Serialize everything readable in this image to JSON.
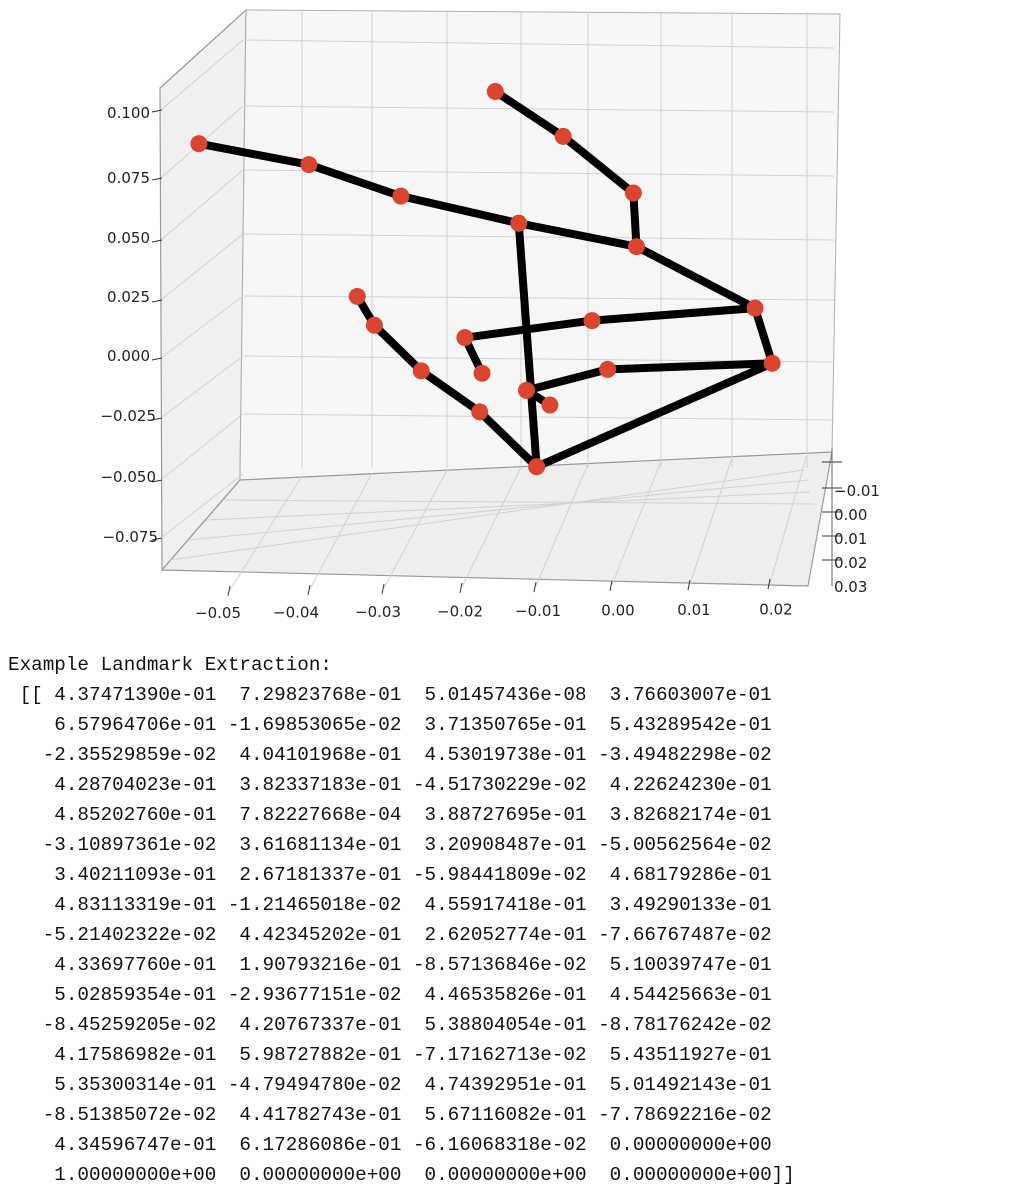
{
  "chart_data": {
    "type": "3d-scatter-line",
    "title": "",
    "xlabel": "",
    "ylabel": "",
    "zlabel": "",
    "x_ticks": [
      "−0.05",
      "−0.04",
      "−0.03",
      "−0.02",
      "−0.01",
      "0.00",
      "0.01",
      "0.02"
    ],
    "y_ticks": [
      "−0.01",
      "0.00",
      "0.01",
      "0.02",
      "0.03"
    ],
    "z_ticks": [
      "0.100",
      "0.075",
      "0.050",
      "0.025",
      "0.000",
      "−0.025",
      "−0.050",
      "−0.075"
    ],
    "point_color": "#d9452f",
    "line_color": "#000000",
    "grid": true,
    "landmarks_image_approx": [
      {
        "id": 0,
        "x": -0.0112,
        "z": -0.0458
      },
      {
        "id": 1,
        "x": -0.0185,
        "z": -0.0233
      },
      {
        "id": 2,
        "x": -0.026,
        "z": -0.0065
      },
      {
        "id": 3,
        "x": -0.032,
        "z": 0.0122
      },
      {
        "id": 4,
        "x": -0.0342,
        "z": 0.024
      },
      {
        "id": 5,
        "x": -0.0135,
        "z": 0.054
      },
      {
        "id": 6,
        "x": -0.0286,
        "z": 0.0651
      },
      {
        "id": 7,
        "x": -0.0404,
        "z": 0.078
      },
      {
        "id": 8,
        "x": -0.0545,
        "z": 0.0866
      },
      {
        "id": 9,
        "x": 0.0016,
        "z": 0.0444
      },
      {
        "id": 10,
        "x": 0.0012,
        "z": 0.0664
      },
      {
        "id": 11,
        "x": -0.0078,
        "z": 0.0896
      },
      {
        "id": 12,
        "x": -0.0165,
        "z": 0.108
      },
      {
        "id": 13,
        "x": 0.0168,
        "z": 0.0192
      },
      {
        "id": 14,
        "x": -0.0041,
        "z": 0.0141
      },
      {
        "id": 15,
        "x": -0.0204,
        "z": 0.0071
      },
      {
        "id": 16,
        "x": -0.0182,
        "z": -0.0075
      },
      {
        "id": 17,
        "x": 0.019,
        "z": -0.0034
      },
      {
        "id": 18,
        "x": -0.0021,
        "z": -0.0059
      },
      {
        "id": 19,
        "x": -0.0125,
        "z": -0.0145
      },
      {
        "id": 20,
        "x": -0.0095,
        "z": -0.0205
      }
    ],
    "connections": [
      [
        0,
        1
      ],
      [
        1,
        2
      ],
      [
        2,
        3
      ],
      [
        3,
        4
      ],
      [
        0,
        5
      ],
      [
        5,
        6
      ],
      [
        6,
        7
      ],
      [
        7,
        8
      ],
      [
        5,
        9
      ],
      [
        9,
        10
      ],
      [
        10,
        11
      ],
      [
        11,
        12
      ],
      [
        9,
        13
      ],
      [
        13,
        14
      ],
      [
        14,
        15
      ],
      [
        15,
        16
      ],
      [
        13,
        17
      ],
      [
        0,
        17
      ],
      [
        17,
        18
      ],
      [
        18,
        19
      ],
      [
        19,
        20
      ]
    ]
  },
  "console": {
    "heading": "Example Landmark Extraction:",
    "rows": [
      " [[ 4.37471390e-01  7.29823768e-01  5.01457436e-08  3.76603007e-01",
      "    6.57964706e-01 -1.69853065e-02  3.71350765e-01  5.43289542e-01",
      "   -2.35529859e-02  4.04101968e-01  4.53019738e-01 -3.49482298e-02",
      "    4.28704023e-01  3.82337183e-01 -4.51730229e-02  4.22624230e-01",
      "    4.85202760e-01  7.82227668e-04  3.88727695e-01  3.82682174e-01",
      "   -3.10897361e-02  3.61681134e-01  3.20908487e-01 -5.00562564e-02",
      "    3.40211093e-01  2.67181337e-01 -5.98441809e-02  4.68179286e-01",
      "    4.83113319e-01 -1.21465018e-02  4.55917418e-01  3.49290133e-01",
      "   -5.21402322e-02  4.42345202e-01  2.62052774e-01 -7.66767487e-02",
      "    4.33697760e-01  1.90793216e-01 -8.57136846e-02  5.10039747e-01",
      "    5.02859354e-01 -2.93677151e-02  4.46535826e-01  4.54425663e-01",
      "   -8.45259205e-02  4.20767337e-01  5.38804054e-01 -8.78176242e-02",
      "    4.17586982e-01  5.98727882e-01 -7.17162713e-02  5.43511927e-01",
      "    5.35300314e-01 -4.79494780e-02  4.74392951e-01  5.01492143e-01",
      "   -8.51385072e-02  4.41782743e-01  5.67116082e-01 -7.78692216e-02",
      "    4.34596747e-01  6.17286086e-01 -6.16068318e-02  0.00000000e+00",
      "    1.00000000e+00  0.00000000e+00  0.00000000e+00  0.00000000e+00]]"
    ]
  }
}
